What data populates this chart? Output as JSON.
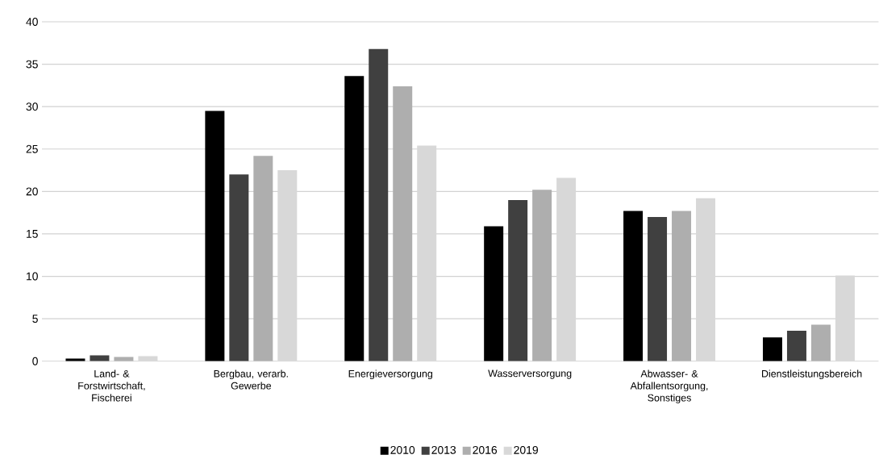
{
  "chart_data": {
    "type": "bar",
    "categories": [
      "Land- & Forstwirtschaft, Fischerei",
      "Bergbau, verarb. Gewerbe",
      "Energieversorgung",
      "Wasserversorgung",
      "Abwasser- & Abfallentsorgung, Sonstiges",
      "Dienstleistungsbereich"
    ],
    "series": [
      {
        "name": "2010",
        "color": "#000000",
        "values": [
          0.3,
          29.5,
          33.6,
          15.9,
          17.7,
          2.8
        ]
      },
      {
        "name": "2013",
        "color": "#404040",
        "values": [
          0.7,
          22.0,
          36.8,
          19.0,
          17.0,
          3.6
        ]
      },
      {
        "name": "2016",
        "color": "#aeaeae",
        "values": [
          0.5,
          24.2,
          32.4,
          20.2,
          17.7,
          4.3
        ]
      },
      {
        "name": "2019",
        "color": "#d8d8d8",
        "values": [
          0.6,
          22.5,
          25.4,
          21.6,
          19.2,
          10.1
        ]
      }
    ],
    "ylim": [
      0,
      40
    ],
    "yticks": [
      0,
      5,
      10,
      15,
      20,
      25,
      30,
      35,
      40
    ],
    "grid": "y",
    "legend": "bottom"
  }
}
